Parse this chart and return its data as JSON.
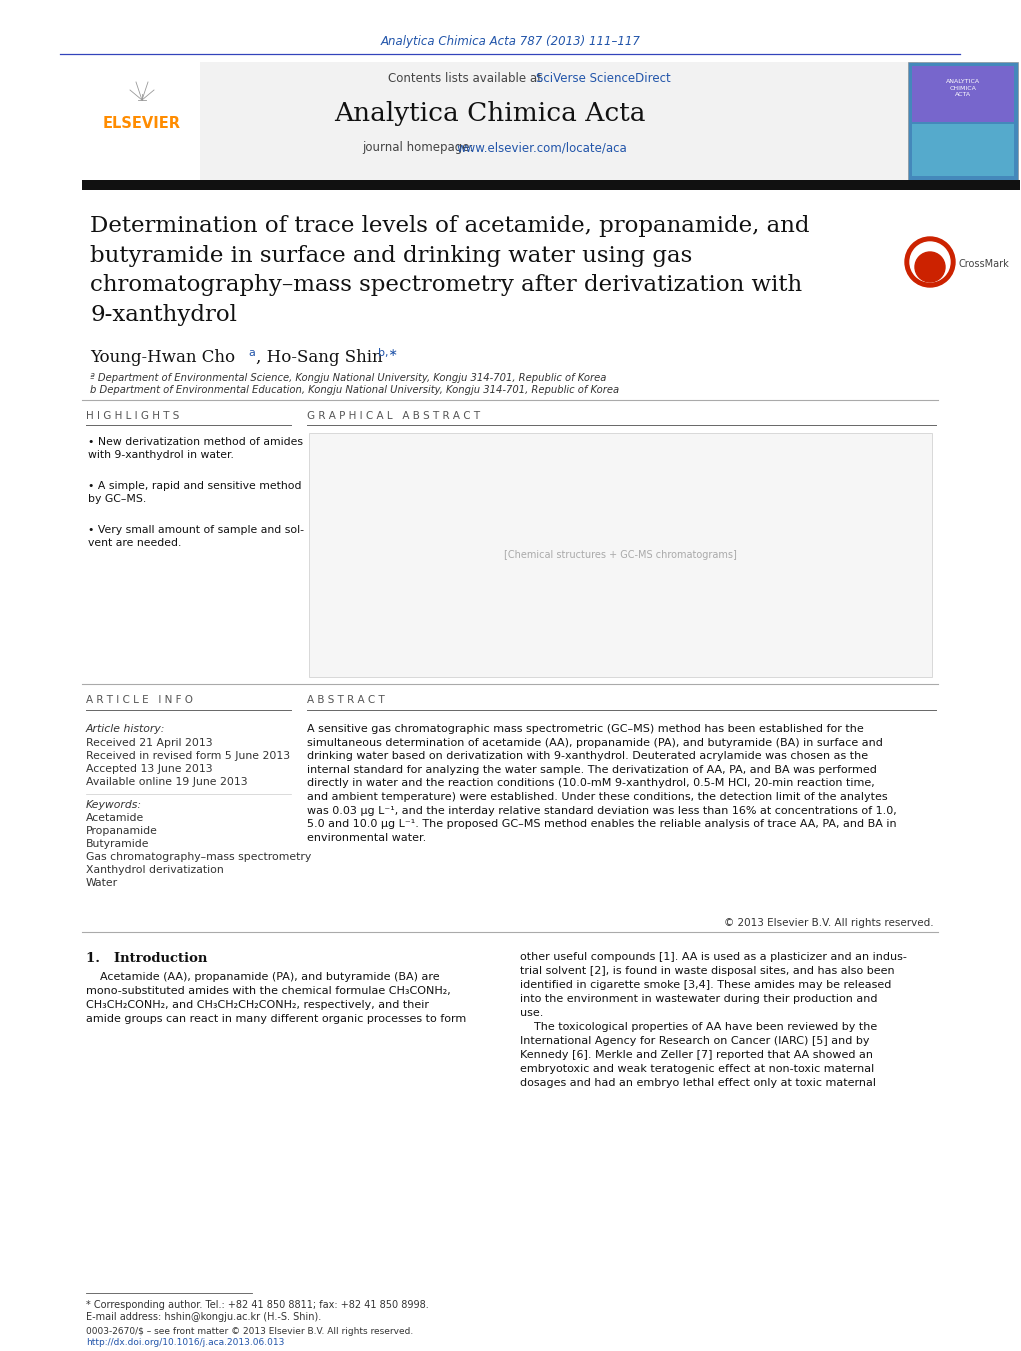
{
  "bg_color": "#ffffff",
  "top_journal_ref": "Analytica Chimica Acta 787 (2013) 111–117",
  "top_journal_ref_color": "#2255aa",
  "contents_line": "Contents lists available at ",
  "sciverse_text": "SciVerse ScienceDirect",
  "sciverse_color": "#2255aa",
  "journal_name": "Analytica Chimica Acta",
  "journal_homepage_text": "journal homepage: ",
  "journal_url": "www.elsevier.com/locate/aca",
  "journal_url_color": "#2255aa",
  "elsevier_color": "#FF8C00",
  "article_title": "Determination of trace levels of acetamide, propanamide, and\nbutyramide in surface and drinking water using gas\nchromatography–mass spectrometry after derivatization with\n9-xanthydrol",
  "author1": "Young-Hwan Cho",
  "author1_super": "a",
  "author2": ", Ho-Sang Shin",
  "author2_super": "b,∗",
  "affil_a": "ª Department of Environmental Science, Kongju National University, Kongju 314-701, Republic of Korea",
  "affil_b": "b Department of Environmental Education, Kongju National University, Kongju 314-701, Republic of Korea",
  "highlights_title": "H I G H L I G H T S",
  "highlight1": "New derivatization method of amides\nwith 9-xanthydrol in water.",
  "highlight2": "A simple, rapid and sensitive method\nby GC–MS.",
  "highlight3": "Very small amount of sample and sol-\nvent are needed.",
  "graphical_abstract_title": "G R A P H I C A L   A B S T R A C T",
  "article_info_title": "A R T I C L E   I N F O",
  "article_history_label": "Article history:",
  "received": "Received 21 April 2013",
  "revised": "Received in revised form 5 June 2013",
  "accepted": "Accepted 13 June 2013",
  "available": "Available online 19 June 2013",
  "keywords_label": "Keywords:",
  "keywords": [
    "Acetamide",
    "Propanamide",
    "Butyramide",
    "Gas chromatography–mass spectrometry",
    "Xanthydrol derivatization",
    "Water"
  ],
  "abstract_title": "A B S T R A C T",
  "abstract_text": "A sensitive gas chromatographic mass spectrometric (GC–MS) method has been established for the\nsimultaneous determination of acetamide (AA), propanamide (PA), and butyramide (BA) in surface and\ndrinking water based on derivatization with 9-xanthydrol. Deuterated acrylamide was chosen as the\ninternal standard for analyzing the water sample. The derivatization of AA, PA, and BA was performed\ndirectly in water and the reaction conditions (10.0-mM 9-xanthydrol, 0.5-M HCl, 20-min reaction time,\nand ambient temperature) were established. Under these conditions, the detection limit of the analytes\nwas 0.03 μg L⁻¹, and the interday relative standard deviation was less than 16% at concentrations of 1.0,\n5.0 and 10.0 μg L⁻¹. The proposed GC–MS method enables the reliable analysis of trace AA, PA, and BA in\nenvironmental water.",
  "copyright": "© 2013 Elsevier B.V. All rights reserved.",
  "intro_title": "1.   Introduction",
  "intro_text1": "    Acetamide (AA), propanamide (PA), and butyramide (BA) are\nmono-substituted amides with the chemical formulae CH₃CONH₂,\nCH₃CH₂CONH₂, and CH₃CH₂CH₂CONH₂, respectively, and their\namide groups can react in many different organic processes to form",
  "intro_text2": "other useful compounds [1]. AA is used as a plasticizer and an indus-\ntrial solvent [2], is found in waste disposal sites, and has also been\nidentified in cigarette smoke [3,4]. These amides may be released\ninto the environment in wastewater during their production and\nuse.\n    The toxicological properties of AA have been reviewed by the\nInternational Agency for Research on Cancer (IARC) [5] and by\nKennedy [6]. Merkle and Zeller [7] reported that AA showed an\nembryotoxic and weak teratogenic effect at non-toxic maternal\ndosages and had an embryo lethal effect only at toxic maternal",
  "footnote1": "* Corresponding author. Tel.: +82 41 850 8811; fax: +82 41 850 8998.",
  "footnote2": "E-mail address: hshin@kongju.ac.kr (H.-S. Shin).",
  "issn": "0003-2670/$ – see front matter © 2013 Elsevier B.V. All rights reserved.",
  "doi": "http://dx.doi.org/10.1016/j.aca.2013.06.013",
  "doi_color": "#2255aa",
  "sep_color": "#aaaaaa",
  "dark_sep": "#555555",
  "text_color": "#111111",
  "link_color": "#2255aa",
  "light_gray": "#f2f2f2"
}
